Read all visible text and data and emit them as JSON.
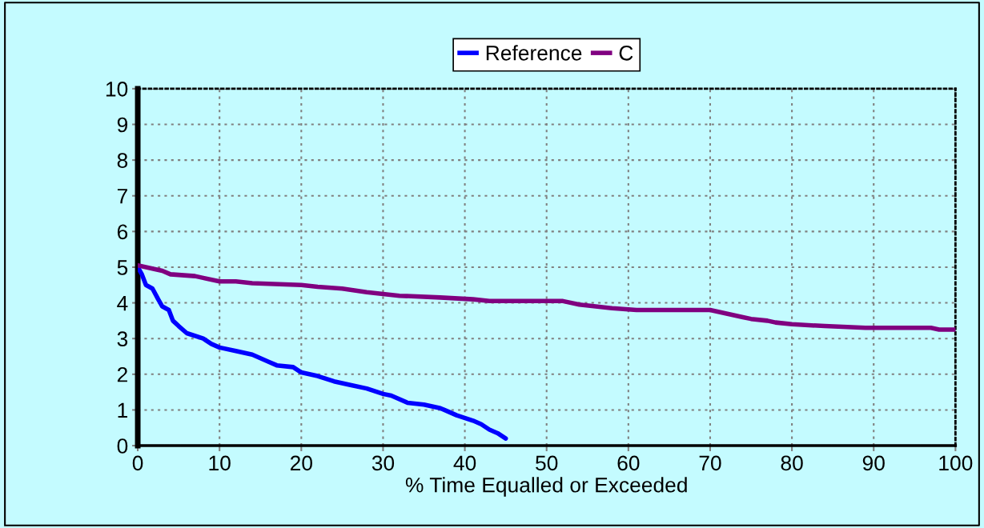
{
  "chart_data": {
    "type": "line",
    "xlabel": "% Time Equalled or Exceeded",
    "xlim": [
      0,
      100
    ],
    "xticks": [
      0,
      10,
      20,
      30,
      40,
      50,
      60,
      70,
      80,
      90,
      100
    ],
    "ylim": [
      0,
      10
    ],
    "yticks": [
      0,
      1,
      2,
      3,
      4,
      5,
      6,
      7,
      8,
      9,
      10
    ],
    "grid": true,
    "legend": "top",
    "marker": "none",
    "line_style": "solid",
    "series": [
      {
        "name": "Reference",
        "color": "#0000ff",
        "x": [
          0,
          0.5,
          1,
          1.8,
          2.5,
          3,
          3.8,
          4.3,
          5,
          6,
          8,
          9,
          10,
          12,
          14,
          15,
          16,
          17,
          19,
          20,
          22,
          24,
          26,
          28,
          30,
          31,
          33,
          35,
          37,
          38,
          39,
          41,
          42,
          43,
          44,
          45
        ],
        "values": [
          5.0,
          4.8,
          4.5,
          4.4,
          4.1,
          3.9,
          3.8,
          3.5,
          3.35,
          3.15,
          3.0,
          2.85,
          2.75,
          2.65,
          2.55,
          2.45,
          2.35,
          2.25,
          2.2,
          2.05,
          1.95,
          1.8,
          1.7,
          1.6,
          1.45,
          1.4,
          1.2,
          1.15,
          1.05,
          0.95,
          0.85,
          0.7,
          0.6,
          0.45,
          0.35,
          0.2
        ]
      },
      {
        "name": "C",
        "color": "#800080",
        "x": [
          0,
          2,
          3,
          4,
          7,
          8,
          10,
          12,
          14,
          20,
          22,
          25,
          28,
          30,
          32,
          37,
          41,
          43,
          52,
          54,
          56,
          58,
          61,
          70,
          72,
          74,
          75,
          77,
          78,
          80,
          84,
          89,
          97,
          98,
          100
        ],
        "values": [
          5.05,
          4.95,
          4.9,
          4.8,
          4.75,
          4.7,
          4.6,
          4.6,
          4.55,
          4.5,
          4.45,
          4.4,
          4.3,
          4.25,
          4.2,
          4.15,
          4.1,
          4.05,
          4.05,
          3.95,
          3.9,
          3.85,
          3.8,
          3.8,
          3.7,
          3.6,
          3.55,
          3.5,
          3.45,
          3.4,
          3.35,
          3.3,
          3.3,
          3.25,
          3.25
        ]
      }
    ]
  }
}
